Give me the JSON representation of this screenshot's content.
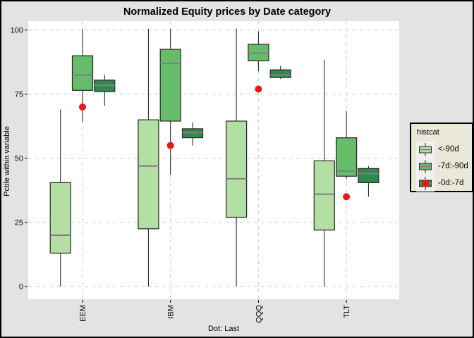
{
  "window": {
    "bg_color": "#e3e3e3",
    "panel_bg": "#ffffff",
    "frame_color": "#000000"
  },
  "chart_data": {
    "type": "boxplot",
    "title": "Normalized Equity prices by Date category",
    "xlabel": "Dot: Last",
    "ylabel": "Pctile within variable",
    "legend_title": "histcat",
    "categories": [
      "EEM",
      "IBM",
      "QQQ",
      "TLT"
    ],
    "yticks": [
      0,
      25,
      50,
      75,
      100
    ],
    "ylim": [
      -5,
      103.5
    ],
    "grid": {
      "color": "#aed8e6",
      "dashed": true,
      "vertical_at_categories": true
    },
    "groups": [
      {
        "label": "<-90d",
        "fill": "#b4dfa4"
      },
      {
        "label": "-7d:-90d",
        "fill": "#67bc69"
      },
      {
        "label": "-0d:-7d",
        "fill": "#2e8b50"
      }
    ],
    "dot_color": "#f01414",
    "median_color": "#808080",
    "box_border_color": "#262626",
    "series": [
      {
        "category": "EEM",
        "boxes": [
          {
            "group": "<-90d",
            "low": 0,
            "q1": 13,
            "med": 20,
            "q3": 40.5,
            "high": 69
          },
          {
            "group": "-7d:-90d",
            "low": 64,
            "q1": 76.5,
            "med": 82.5,
            "q3": 90,
            "high": 100.5
          },
          {
            "group": "-0d:-7d",
            "low": 70.5,
            "q1": 76,
            "med": 78.5,
            "q3": 80.5,
            "high": 82.5
          }
        ],
        "last_dot": 70
      },
      {
        "category": "IBM",
        "boxes": [
          {
            "group": "<-90d",
            "low": 0,
            "q1": 22.5,
            "med": 47,
            "q3": 65,
            "high": 100.5
          },
          {
            "group": "-7d:-90d",
            "low": 43.5,
            "q1": 64.5,
            "med": 87,
            "q3": 92.5,
            "high": 100.5
          },
          {
            "group": "-0d:-7d",
            "low": 55,
            "q1": 58,
            "med": 60,
            "q3": 61.5,
            "high": 64
          }
        ],
        "last_dot": 55
      },
      {
        "category": "QQQ",
        "boxes": [
          {
            "group": "<-90d",
            "low": 0,
            "q1": 27,
            "med": 42,
            "q3": 64.5,
            "high": 100.5
          },
          {
            "group": "-7d:-90d",
            "low": 84,
            "q1": 88,
            "med": 91,
            "q3": 94.5,
            "high": 99.5
          },
          {
            "group": "-0d:-7d",
            "low": 81,
            "q1": 81.5,
            "med": 82.5,
            "q3": 84.5,
            "high": 86
          }
        ],
        "last_dot": 77
      },
      {
        "category": "TLT",
        "boxes": [
          {
            "group": "<-90d",
            "low": 0,
            "q1": 22,
            "med": 36,
            "q3": 49,
            "high": 88.5
          },
          {
            "group": "-7d:-90d",
            "low": 42,
            "q1": 43,
            "med": 45,
            "q3": 58,
            "high": 68.5
          },
          {
            "group": "-0d:-7d",
            "low": 35,
            "q1": 40.5,
            "med": 44,
            "q3": 46,
            "high": 47
          }
        ],
        "last_dot": 35
      }
    ]
  }
}
